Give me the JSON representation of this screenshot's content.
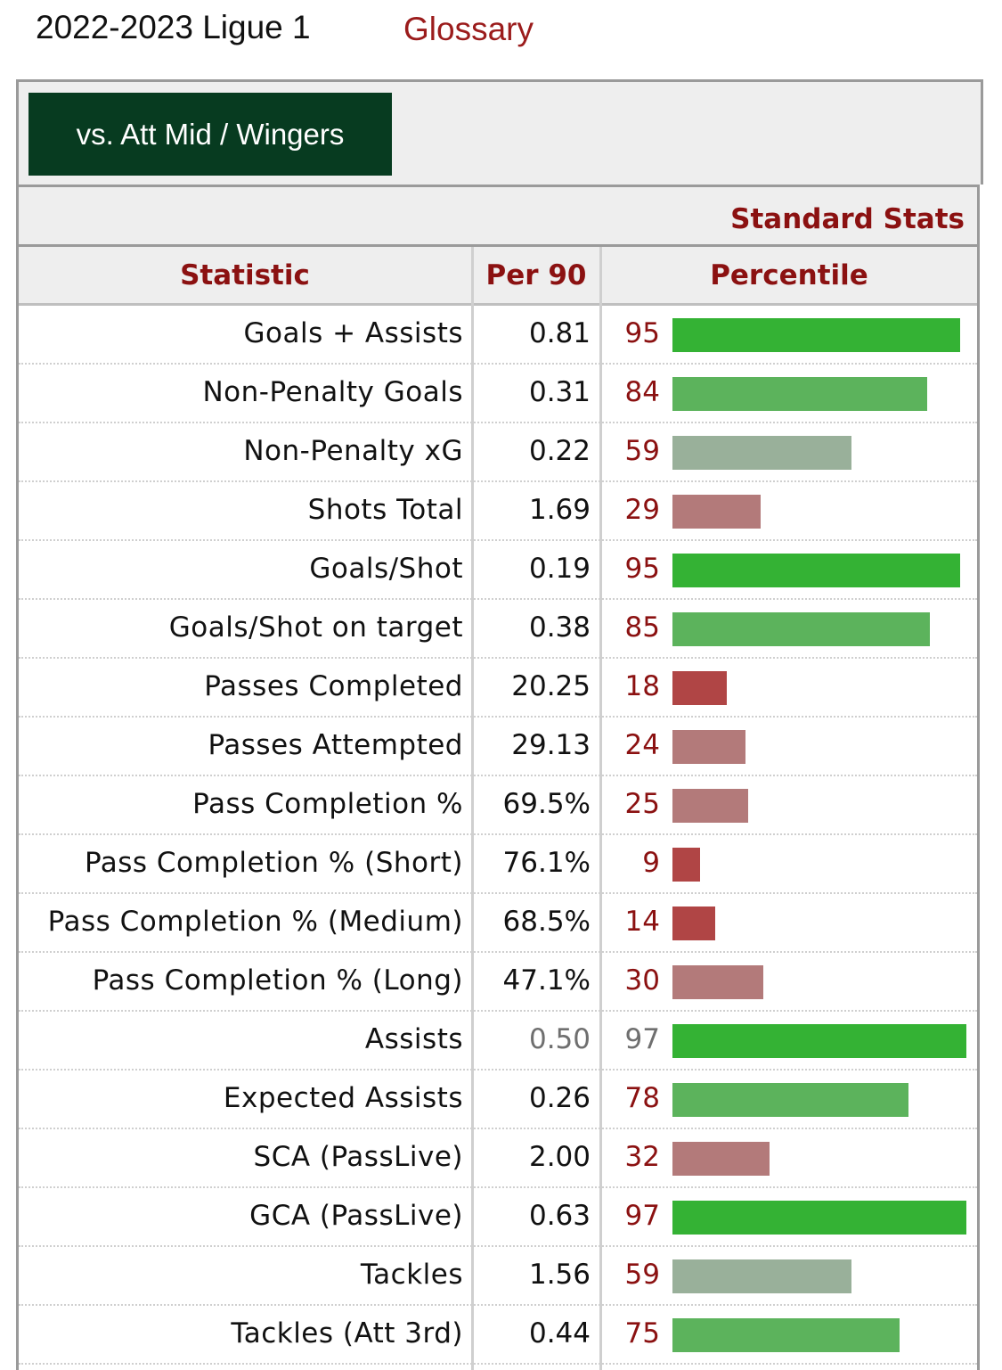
{
  "header": {
    "title": "2022-2023 Ligue 1",
    "glossary_label": "Glossary"
  },
  "filter": {
    "active_tab": "vs. Att Mid / Wingers"
  },
  "table": {
    "section_title": "Standard Stats",
    "columns": [
      "Statistic",
      "Per 90",
      "Percentile"
    ],
    "rows": [
      {
        "stat": "Goals + Assists",
        "per90": "0.81",
        "percentile": 95
      },
      {
        "stat": "Non-Penalty Goals",
        "per90": "0.31",
        "percentile": 84
      },
      {
        "stat": "Non-Penalty xG",
        "per90": "0.22",
        "percentile": 59
      },
      {
        "stat": "Shots Total",
        "per90": "1.69",
        "percentile": 29
      },
      {
        "stat": "Goals/Shot",
        "per90": "0.19",
        "percentile": 95
      },
      {
        "stat": "Goals/Shot on target",
        "per90": "0.38",
        "percentile": 85
      },
      {
        "stat": "Passes Completed",
        "per90": "20.25",
        "percentile": 18
      },
      {
        "stat": "Passes Attempted",
        "per90": "29.13",
        "percentile": 24
      },
      {
        "stat": "Pass Completion %",
        "per90": "69.5%",
        "percentile": 25
      },
      {
        "stat": "Pass Completion % (Short)",
        "per90": "76.1%",
        "percentile": 9
      },
      {
        "stat": "Pass Completion % (Medium)",
        "per90": "68.5%",
        "percentile": 14
      },
      {
        "stat": "Pass Completion % (Long)",
        "per90": "47.1%",
        "percentile": 30
      },
      {
        "stat": "Assists",
        "per90": "0.50",
        "percentile": 97,
        "muted": true
      },
      {
        "stat": "Expected Assists",
        "per90": "0.26",
        "percentile": 78
      },
      {
        "stat": "SCA (PassLive)",
        "per90": "2.00",
        "percentile": 32
      },
      {
        "stat": "GCA (PassLive)",
        "per90": "0.63",
        "percentile": 97
      },
      {
        "stat": "Tackles",
        "per90": "1.56",
        "percentile": 59
      },
      {
        "stat": "Tackles (Att 3rd)",
        "per90": "0.44",
        "percentile": 75
      }
    ]
  },
  "colors": {
    "high": "#34b234",
    "mid_high": "#5cb35c",
    "mid": "#99b09a",
    "mid_low": "#b37a7a",
    "low": "#b04545",
    "accent": "#8b1111",
    "tab_bg": "#073b20"
  }
}
